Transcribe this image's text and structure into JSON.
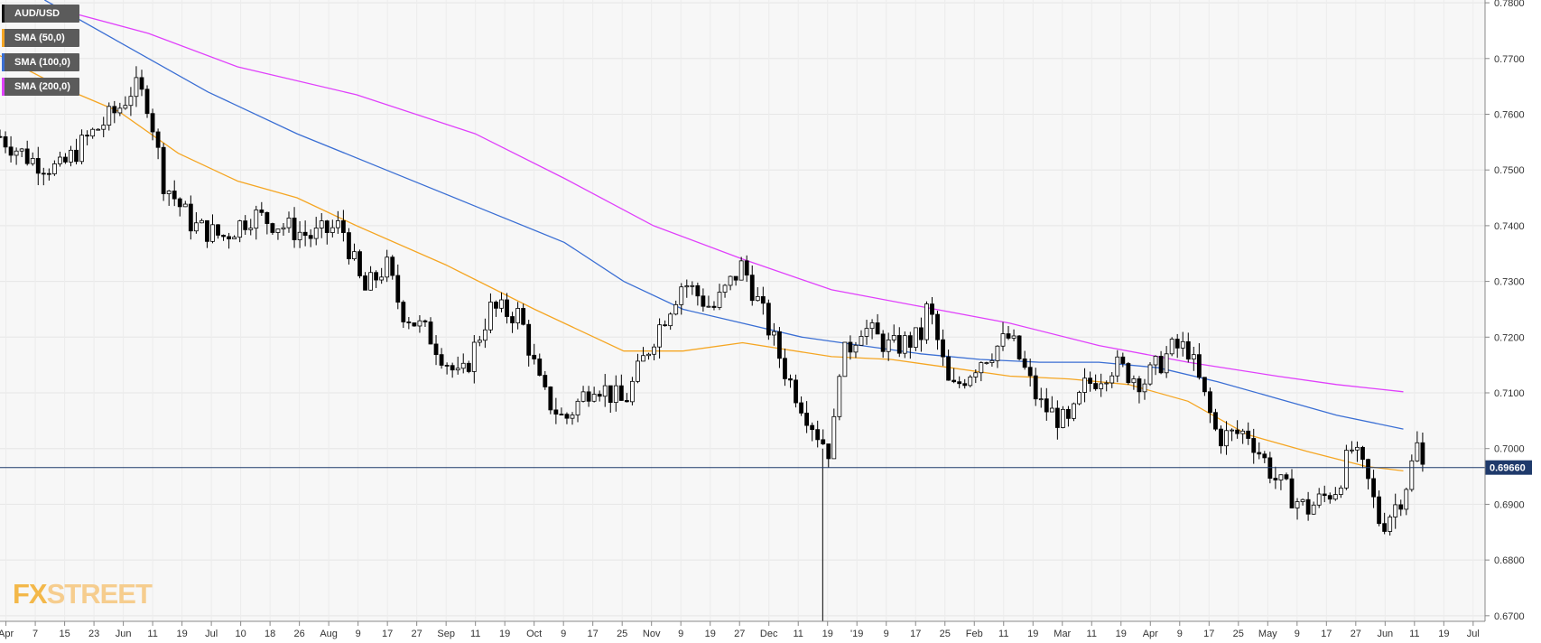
{
  "chart_data": {
    "type": "candlestick",
    "symbol": "AUD/USD",
    "last_price_label": "0.69660",
    "last_price": 0.6966,
    "ylim": [
      0.669,
      0.7805
    ],
    "y_ticks": [
      "0.7800",
      "0.7700",
      "0.7600",
      "0.7500",
      "0.7400",
      "0.7300",
      "0.7200",
      "0.7100",
      "0.7000",
      "0.6900",
      "0.6800",
      "0.6700"
    ],
    "x_ticks": [
      "Apr",
      "7",
      "15",
      "23",
      "Jun",
      "11",
      "19",
      "Jul",
      "10",
      "18",
      "26",
      "Aug",
      "9",
      "17",
      "27",
      "Sep",
      "11",
      "19",
      "Oct",
      "9",
      "17",
      "25",
      "Nov",
      "9",
      "19",
      "27",
      "Dec",
      "11",
      "19",
      "'19",
      "9",
      "17",
      "25",
      "Feb",
      "11",
      "19",
      "Mar",
      "11",
      "19",
      "Apr",
      "9",
      "17",
      "25",
      "May",
      "9",
      "17",
      "27",
      "Jun",
      "11",
      "19",
      "Jul"
    ],
    "grid": true,
    "legend_position": "top-left",
    "series": [
      {
        "name": "AUD/USD",
        "color": "#000000"
      },
      {
        "name": "SMA (50,0)",
        "color": "#f5a623",
        "points": [
          [
            0,
            0.7705
          ],
          [
            0.04,
            0.765
          ],
          [
            0.08,
            0.7605
          ],
          [
            0.12,
            0.753
          ],
          [
            0.16,
            0.748
          ],
          [
            0.2,
            0.745
          ],
          [
            0.24,
            0.74
          ],
          [
            0.3,
            0.733
          ],
          [
            0.36,
            0.725
          ],
          [
            0.42,
            0.7175
          ],
          [
            0.46,
            0.7175
          ],
          [
            0.5,
            0.719
          ],
          [
            0.56,
            0.7165
          ],
          [
            0.6,
            0.716
          ],
          [
            0.64,
            0.7145
          ],
          [
            0.68,
            0.713
          ],
          [
            0.72,
            0.7125
          ],
          [
            0.76,
            0.7115
          ],
          [
            0.8,
            0.7085
          ],
          [
            0.84,
            0.7025
          ],
          [
            0.88,
            0.6995
          ],
          [
            0.92,
            0.6968
          ],
          [
            0.945,
            0.696
          ]
        ]
      },
      {
        "name": "SMA (100,0)",
        "color": "#3b6fd4",
        "points": [
          [
            0.03,
            0.7805
          ],
          [
            0.08,
            0.773
          ],
          [
            0.14,
            0.764
          ],
          [
            0.2,
            0.7565
          ],
          [
            0.26,
            0.75
          ],
          [
            0.32,
            0.7435
          ],
          [
            0.38,
            0.737
          ],
          [
            0.42,
            0.73
          ],
          [
            0.46,
            0.725
          ],
          [
            0.5,
            0.7225
          ],
          [
            0.54,
            0.72
          ],
          [
            0.58,
            0.7185
          ],
          [
            0.62,
            0.717
          ],
          [
            0.66,
            0.716
          ],
          [
            0.7,
            0.7155
          ],
          [
            0.74,
            0.7155
          ],
          [
            0.78,
            0.7145
          ],
          [
            0.82,
            0.712
          ],
          [
            0.86,
            0.709
          ],
          [
            0.9,
            0.706
          ],
          [
            0.945,
            0.7035
          ]
        ]
      },
      {
        "name": "SMA (200,0)",
        "color": "#e040fb",
        "points": [
          [
            0.03,
            0.7795
          ],
          [
            0.1,
            0.7745
          ],
          [
            0.16,
            0.7685
          ],
          [
            0.24,
            0.7635
          ],
          [
            0.32,
            0.7565
          ],
          [
            0.38,
            0.7485
          ],
          [
            0.44,
            0.74
          ],
          [
            0.5,
            0.734
          ],
          [
            0.56,
            0.7285
          ],
          [
            0.62,
            0.7255
          ],
          [
            0.68,
            0.7225
          ],
          [
            0.74,
            0.7185
          ],
          [
            0.8,
            0.7155
          ],
          [
            0.86,
            0.713
          ],
          [
            0.9,
            0.7115
          ],
          [
            0.945,
            0.7102
          ]
        ]
      }
    ],
    "vertical_line_at": 0.554
  },
  "legend": [
    {
      "label": "AUD/USD",
      "color": "#111111"
    },
    {
      "label": "SMA (50,0)",
      "color": "#f5a623"
    },
    {
      "label": "SMA (100,0)",
      "color": "#3b6fd4"
    },
    {
      "label": "SMA (200,0)",
      "color": "#e040fb"
    }
  ],
  "watermark": {
    "fx": "FX",
    "street": "STREET"
  }
}
